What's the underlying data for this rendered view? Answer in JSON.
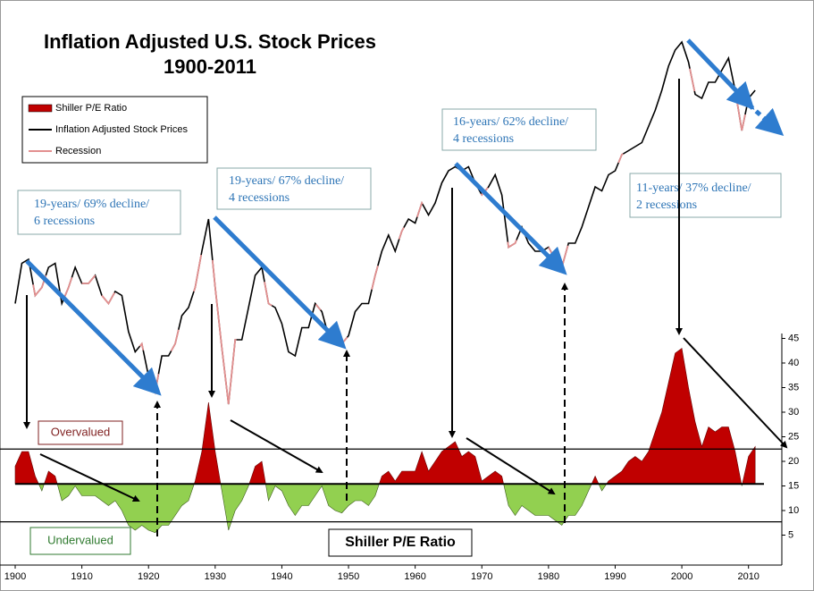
{
  "chart_data": {
    "type": "line",
    "title": "Inflation Adjusted U.S. Stock Prices",
    "subtitle": "1900-2011",
    "x": [
      1900,
      1901,
      1902,
      1903,
      1904,
      1905,
      1906,
      1907,
      1908,
      1909,
      1910,
      1911,
      1912,
      1913,
      1914,
      1915,
      1916,
      1917,
      1918,
      1919,
      1920,
      1921,
      1922,
      1923,
      1924,
      1925,
      1926,
      1927,
      1928,
      1929,
      1930,
      1931,
      1932,
      1933,
      1934,
      1935,
      1936,
      1937,
      1938,
      1939,
      1940,
      1941,
      1942,
      1943,
      1944,
      1945,
      1946,
      1947,
      1948,
      1949,
      1950,
      1951,
      1952,
      1953,
      1954,
      1955,
      1956,
      1957,
      1958,
      1959,
      1960,
      1961,
      1962,
      1963,
      1964,
      1965,
      1966,
      1967,
      1968,
      1969,
      1970,
      1971,
      1972,
      1973,
      1974,
      1975,
      1976,
      1977,
      1978,
      1979,
      1980,
      1981,
      1982,
      1983,
      1984,
      1985,
      1986,
      1987,
      1988,
      1989,
      1990,
      1991,
      1992,
      1993,
      1994,
      1995,
      1996,
      1997,
      1998,
      1999,
      2000,
      2001,
      2002,
      2003,
      2004,
      2005,
      2006,
      2007,
      2008,
      2009,
      2010,
      2011
    ],
    "series": [
      {
        "name": "Inflation Adjusted Stock Prices",
        "color": "#000000",
        "axis": "y",
        "values": [
          29,
          39,
          40,
          31,
          33,
          38,
          39,
          29,
          33,
          38,
          34,
          34,
          36,
          31,
          29,
          32,
          31,
          22,
          17,
          19,
          11,
          7,
          16,
          16,
          19,
          26,
          28,
          33,
          42,
          50,
          33,
          18,
          4,
          20,
          20,
          28,
          36,
          38,
          29,
          28,
          24,
          17,
          16,
          23,
          23,
          29,
          27,
          21,
          22,
          19,
          21,
          27,
          29,
          29,
          36,
          42,
          46,
          42,
          47,
          50,
          49,
          54,
          51,
          54,
          59,
          62,
          63,
          62,
          63,
          59,
          56,
          58,
          61,
          56,
          43,
          44,
          48,
          44,
          42,
          42,
          43,
          40,
          38,
          44,
          44,
          48,
          53,
          58,
          57,
          61,
          62,
          66,
          67,
          68,
          69,
          73,
          77,
          82,
          88,
          92,
          94,
          89,
          81,
          80,
          84,
          84,
          87,
          90,
          82,
          72,
          80,
          82
        ]
      },
      {
        "name": "Shiller P/E Ratio",
        "color": "#c00000",
        "color_below": "#92d050",
        "axis": "y2",
        "values": [
          19,
          22,
          22,
          17,
          14,
          18,
          17,
          12,
          13,
          15,
          13,
          13,
          13,
          12,
          11,
          12,
          10,
          7,
          6,
          7,
          6,
          5.5,
          7,
          7,
          9,
          11,
          12,
          16,
          22,
          32,
          22,
          14,
          6,
          10,
          12,
          15,
          19,
          20,
          12,
          15,
          14,
          11,
          9,
          11,
          11,
          13,
          15,
          11,
          10,
          9.5,
          11,
          12,
          12,
          11,
          13,
          17,
          18,
          16,
          18,
          18,
          18,
          22,
          18,
          20,
          22,
          23,
          24,
          21,
          22,
          21,
          16,
          17,
          18,
          17,
          11,
          9,
          11,
          10,
          9,
          9,
          9,
          8,
          7,
          9,
          9,
          11,
          14,
          17,
          14,
          16,
          17,
          18,
          20,
          21,
          20,
          22,
          26,
          30,
          36,
          42,
          43,
          35,
          28,
          23,
          27,
          26,
          27,
          27,
          22,
          15,
          21,
          23
        ]
      }
    ],
    "recessions": {
      "name": "Recession",
      "color": "#e39090",
      "periods": [
        [
          1902.7,
          1904.6
        ],
        [
          1907.4,
          1908.5
        ],
        [
          1910,
          1912
        ],
        [
          1913,
          1914.9
        ],
        [
          1918.7,
          1919.2
        ],
        [
          1920,
          1921.5
        ],
        [
          1923.4,
          1924.5
        ],
        [
          1926.8,
          1927.9
        ],
        [
          1929.6,
          1933.2
        ],
        [
          1937.4,
          1938.5
        ],
        [
          1945.1,
          1945.8
        ],
        [
          1948.9,
          1949.8
        ],
        [
          1953.5,
          1954.4
        ],
        [
          1957.6,
          1958.3
        ],
        [
          1960.3,
          1961.1
        ],
        [
          1969.9,
          1970.9
        ],
        [
          1973.9,
          1975.2
        ],
        [
          1980,
          1980.5
        ],
        [
          1981.5,
          1982.9
        ],
        [
          1990.5,
          1991.2
        ],
        [
          2001.2,
          2001.9
        ],
        [
          2007.9,
          2009.5
        ]
      ]
    },
    "xlim": [
      1900,
      2015
    ],
    "xticks": [
      1900,
      1910,
      1920,
      1930,
      1940,
      1950,
      1960,
      1970,
      1980,
      1990,
      2000,
      2010
    ],
    "ylim": [
      0,
      100
    ],
    "y2lim": [
      0,
      46
    ],
    "y2ticks": [
      5,
      10,
      15,
      20,
      25,
      30,
      35,
      40,
      45
    ],
    "fill_baseline": 15.4,
    "y2_reference_lines": [
      22.5,
      7.7
    ],
    "annotations": [
      [
        "19-years/ 69% decline/",
        "6 recessions"
      ],
      [
        "19-years/ 67% decline/",
        "4 recessions"
      ],
      [
        "16-years/ 62% decline/",
        "4 recessions"
      ],
      [
        "11-years/ 37% decline/",
        "2 recessions"
      ]
    ],
    "overvalued_label": "Overvalued",
    "undervalued_label": "Undervalued",
    "pe_panel_label": "Shiller P/E Ratio"
  }
}
